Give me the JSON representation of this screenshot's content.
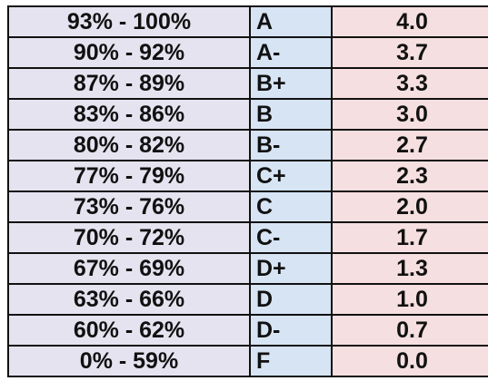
{
  "colors": {
    "range_bg": "#e6e3f0",
    "letter_bg": "#d6e4f4",
    "gpa_bg": "#f6dfe0",
    "border": "#111111"
  },
  "rows": [
    {
      "range": "93% - 100%",
      "letter": "A",
      "gpa": "4.0"
    },
    {
      "range": "90% - 92%",
      "letter": "A-",
      "gpa": "3.7"
    },
    {
      "range": "87% - 89%",
      "letter": "B+",
      "gpa": "3.3"
    },
    {
      "range": "83% - 86%",
      "letter": "B",
      "gpa": "3.0"
    },
    {
      "range": "80% - 82%",
      "letter": "B-",
      "gpa": "2.7"
    },
    {
      "range": "77% - 79%",
      "letter": "C+",
      "gpa": "2.3"
    },
    {
      "range": "73% - 76%",
      "letter": "C",
      "gpa": "2.0"
    },
    {
      "range": "70% - 72%",
      "letter": "C-",
      "gpa": "1.7"
    },
    {
      "range": "67% - 69%",
      "letter": "D+",
      "gpa": "1.3"
    },
    {
      "range": "63% - 66%",
      "letter": "D",
      "gpa": "1.0"
    },
    {
      "range": "60% - 62%",
      "letter": "D-",
      "gpa": "0.7"
    },
    {
      "range": "0% - 59%",
      "letter": "F",
      "gpa": "0.0"
    }
  ]
}
